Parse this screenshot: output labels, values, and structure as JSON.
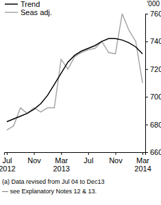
{
  "chart_data": {
    "type": "line",
    "y_label": "'000",
    "categories": [
      "Jul 2012",
      null,
      null,
      null,
      "Nov",
      null,
      null,
      null,
      "Mar 2013",
      null,
      null,
      null,
      "Jul",
      null,
      null,
      null,
      "Nov",
      null,
      null,
      null,
      "Mar 2014"
    ],
    "series": [
      {
        "name": "Trend",
        "color": "#000000",
        "values": [
          682,
          684,
          686,
          688,
          691,
          695,
          701,
          709,
          717,
          725,
          730,
          733,
          735,
          737,
          740,
          742,
          742,
          741,
          739,
          736,
          731
        ]
      },
      {
        "name": "Seas adj.",
        "color": "#a6a6a6",
        "values": [
          676,
          679,
          692,
          688,
          692,
          689,
          692,
          692,
          727,
          720,
          729,
          732,
          734,
          735,
          740,
          732,
          731,
          760,
          748,
          740,
          710
        ]
      }
    ],
    "ylim": [
      660,
      760
    ],
    "yticks": [
      660,
      680,
      700,
      720,
      740,
      760
    ],
    "legend": "top-left",
    "annotations": [
      "(a) Data revised from Jul 04 to Dec13",
      "— see Explanatory Notes 12 & 13."
    ]
  }
}
